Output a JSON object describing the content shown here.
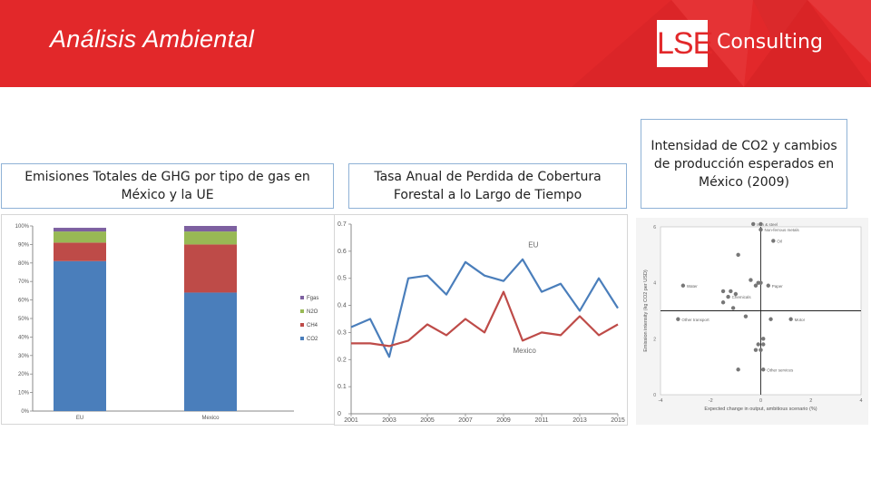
{
  "header": {
    "title": "Análisis Ambiental",
    "logo_mark": "LSE",
    "logo_word": "Consulting",
    "background_color": "#e2282a"
  },
  "captions": {
    "ghg": "Emisiones Totales de GHG por tipo de gas en México y la UE",
    "forest": "Tasa Anual de Perdida de Cobertura Forestal a lo Largo de Tiempo",
    "co2": "Intensidad de CO2 y cambios de producción esperados en México (2009)"
  },
  "chart_data": [
    {
      "type": "bar",
      "stacked": true,
      "categories": [
        "EU",
        "Mexico"
      ],
      "series": [
        {
          "name": "CO2",
          "values": [
            81,
            64
          ],
          "color": "#4a7ebb"
        },
        {
          "name": "CH4",
          "values": [
            10,
            26
          ],
          "color": "#be4b48"
        },
        {
          "name": "N2O",
          "values": [
            6,
            7
          ],
          "color": "#98b954"
        },
        {
          "name": "Fgas",
          "values": [
            2,
            3
          ],
          "color": "#7d60a0"
        }
      ],
      "y_ticks": [
        "0%",
        "10%",
        "20%",
        "30%",
        "40%",
        "50%",
        "60%",
        "70%",
        "80%",
        "90%",
        "100%"
      ],
      "ylim": [
        0,
        100
      ],
      "legend_position": "right",
      "grid": false
    },
    {
      "type": "line",
      "x": [
        2001,
        2002,
        2003,
        2004,
        2005,
        2006,
        2007,
        2008,
        2009,
        2010,
        2011,
        2012,
        2013,
        2014,
        2015
      ],
      "x_ticks": [
        "2001",
        "2003",
        "2005",
        "2007",
        "2009",
        "2011",
        "2013",
        "2015"
      ],
      "y_ticks": [
        "0",
        "0.1",
        "0.2",
        "0.3",
        "0.4",
        "0.5",
        "0.6",
        "0.7"
      ],
      "ylim": [
        0,
        0.7
      ],
      "series": [
        {
          "name": "EU",
          "values": [
            0.32,
            0.35,
            0.21,
            0.5,
            0.51,
            0.44,
            0.56,
            0.51,
            0.49,
            0.57,
            0.45,
            0.48,
            0.38,
            0.5,
            0.39
          ],
          "color": "#4a7ebb"
        },
        {
          "name": "Mexico",
          "values": [
            0.26,
            0.26,
            0.25,
            0.27,
            0.33,
            0.29,
            0.35,
            0.3,
            0.45,
            0.27,
            0.3,
            0.29,
            0.36,
            0.29,
            0.33
          ],
          "color": "#be4b48"
        }
      ],
      "grid": false
    },
    {
      "type": "scatter",
      "xlabel": "Expected change in output, ambitious scenario (%)",
      "ylabel": "Emission intensity (kg CO2 per USD)",
      "x_ticks": [
        "-4",
        "-2",
        "0",
        "2",
        "4"
      ],
      "y_ticks": [
        "0",
        "2",
        "4",
        "6"
      ],
      "xlim": [
        -4,
        4
      ],
      "ylim": [
        0,
        6
      ],
      "reference_y": 3,
      "points": [
        {
          "x": -0.3,
          "y": 6.1,
          "label": "Iron & steel"
        },
        {
          "x": 0.0,
          "y": 6.1
        },
        {
          "x": 0.0,
          "y": 5.9,
          "label": "Non-ferrous metals"
        },
        {
          "x": 0.5,
          "y": 5.5,
          "label": "Oil"
        },
        {
          "x": -0.9,
          "y": 5.0
        },
        {
          "x": -3.1,
          "y": 3.9,
          "label": "Water"
        },
        {
          "x": -0.4,
          "y": 4.1
        },
        {
          "x": -0.2,
          "y": 3.9
        },
        {
          "x": -0.1,
          "y": 4.0
        },
        {
          "x": 0.0,
          "y": 4.0
        },
        {
          "x": 0.3,
          "y": 3.9,
          "label": "Paper"
        },
        {
          "x": -1.5,
          "y": 3.7
        },
        {
          "x": -1.2,
          "y": 3.7
        },
        {
          "x": -1.0,
          "y": 3.6
        },
        {
          "x": -1.3,
          "y": 3.5,
          "label": "Chemicals"
        },
        {
          "x": -1.5,
          "y": 3.3
        },
        {
          "x": -1.1,
          "y": 3.1
        },
        {
          "x": -0.6,
          "y": 2.8
        },
        {
          "x": -3.3,
          "y": 2.7,
          "label": "Other transport"
        },
        {
          "x": 0.4,
          "y": 2.7
        },
        {
          "x": 1.2,
          "y": 2.7,
          "label": "Motor"
        },
        {
          "x": 0.1,
          "y": 2.0
        },
        {
          "x": -0.1,
          "y": 1.8
        },
        {
          "x": 0.1,
          "y": 1.8
        },
        {
          "x": -0.2,
          "y": 1.6
        },
        {
          "x": 0.0,
          "y": 1.6
        },
        {
          "x": -0.9,
          "y": 0.9
        },
        {
          "x": 0.1,
          "y": 0.9,
          "label": "Other services"
        }
      ],
      "grid": false
    }
  ]
}
